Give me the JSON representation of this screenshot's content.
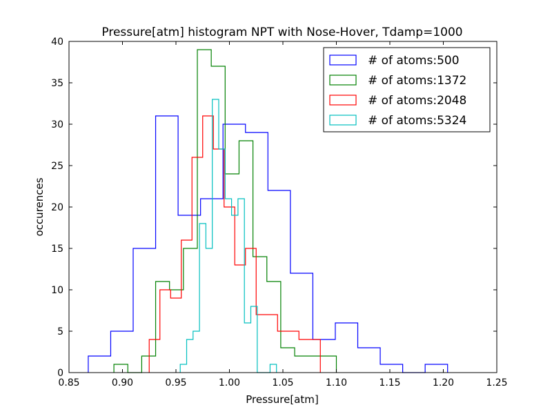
{
  "chart_data": {
    "type": "histogram-step",
    "title": "Pressure[atm] histogram NPT with Nose-Hover, Tdamp=1000",
    "xlabel": "Pressure[atm]",
    "ylabel": "occurences",
    "xlim": [
      0.85,
      1.25
    ],
    "ylim": [
      0,
      40
    ],
    "xticks": [
      "0.85",
      "0.90",
      "0.95",
      "1.00",
      "1.05",
      "1.10",
      "1.15",
      "1.20",
      "1.25"
    ],
    "yticks": [
      "0",
      "5",
      "10",
      "15",
      "20",
      "25",
      "30",
      "35",
      "40"
    ],
    "grid": false,
    "legend_position": "top-right",
    "series": [
      {
        "name": "# of atoms:500",
        "color": "#0000ff",
        "edges": [
          0.868,
          0.889,
          0.91,
          0.931,
          0.952,
          0.973,
          0.994,
          1.015,
          1.036,
          1.057,
          1.078,
          1.099,
          1.12,
          1.141,
          1.162,
          1.183,
          1.204
        ],
        "counts": [
          2,
          5,
          15,
          31,
          19,
          21,
          30,
          29,
          22,
          12,
          4,
          6,
          3,
          1,
          0,
          1
        ]
      },
      {
        "name": "# of atoms:1372",
        "color": "#008000",
        "edges": [
          0.892,
          0.905,
          0.918,
          0.931,
          0.944,
          0.957,
          0.97,
          0.983,
          0.996,
          1.009,
          1.022,
          1.035,
          1.048,
          1.061,
          1.074,
          1.087,
          1.1
        ],
        "counts": [
          1,
          0,
          2,
          11,
          10,
          15,
          39,
          37,
          24,
          28,
          14,
          11,
          3,
          2,
          2,
          2
        ]
      },
      {
        "name": "# of atoms:2048",
        "color": "#ff0000",
        "edges": [
          0.925,
          0.935,
          0.945,
          0.955,
          0.965,
          0.975,
          0.985,
          0.995,
          1.005,
          1.015,
          1.025,
          1.035,
          1.045,
          1.055,
          1.065,
          1.075,
          1.085
        ],
        "counts": [
          4,
          10,
          9,
          16,
          26,
          31,
          27,
          20,
          13,
          15,
          7,
          7,
          5,
          5,
          4,
          4
        ]
      },
      {
        "name": "# of atoms:5324",
        "color": "#00bfbf",
        "edges": [
          0.954,
          0.96,
          0.966,
          0.972,
          0.978,
          0.984,
          0.99,
          0.996,
          1.002,
          1.008,
          1.014,
          1.02,
          1.026,
          1.032,
          1.038,
          1.044
        ],
        "counts": [
          1,
          4,
          5,
          18,
          15,
          33,
          27,
          21,
          19,
          21,
          6,
          8,
          0,
          0,
          1
        ]
      }
    ]
  }
}
